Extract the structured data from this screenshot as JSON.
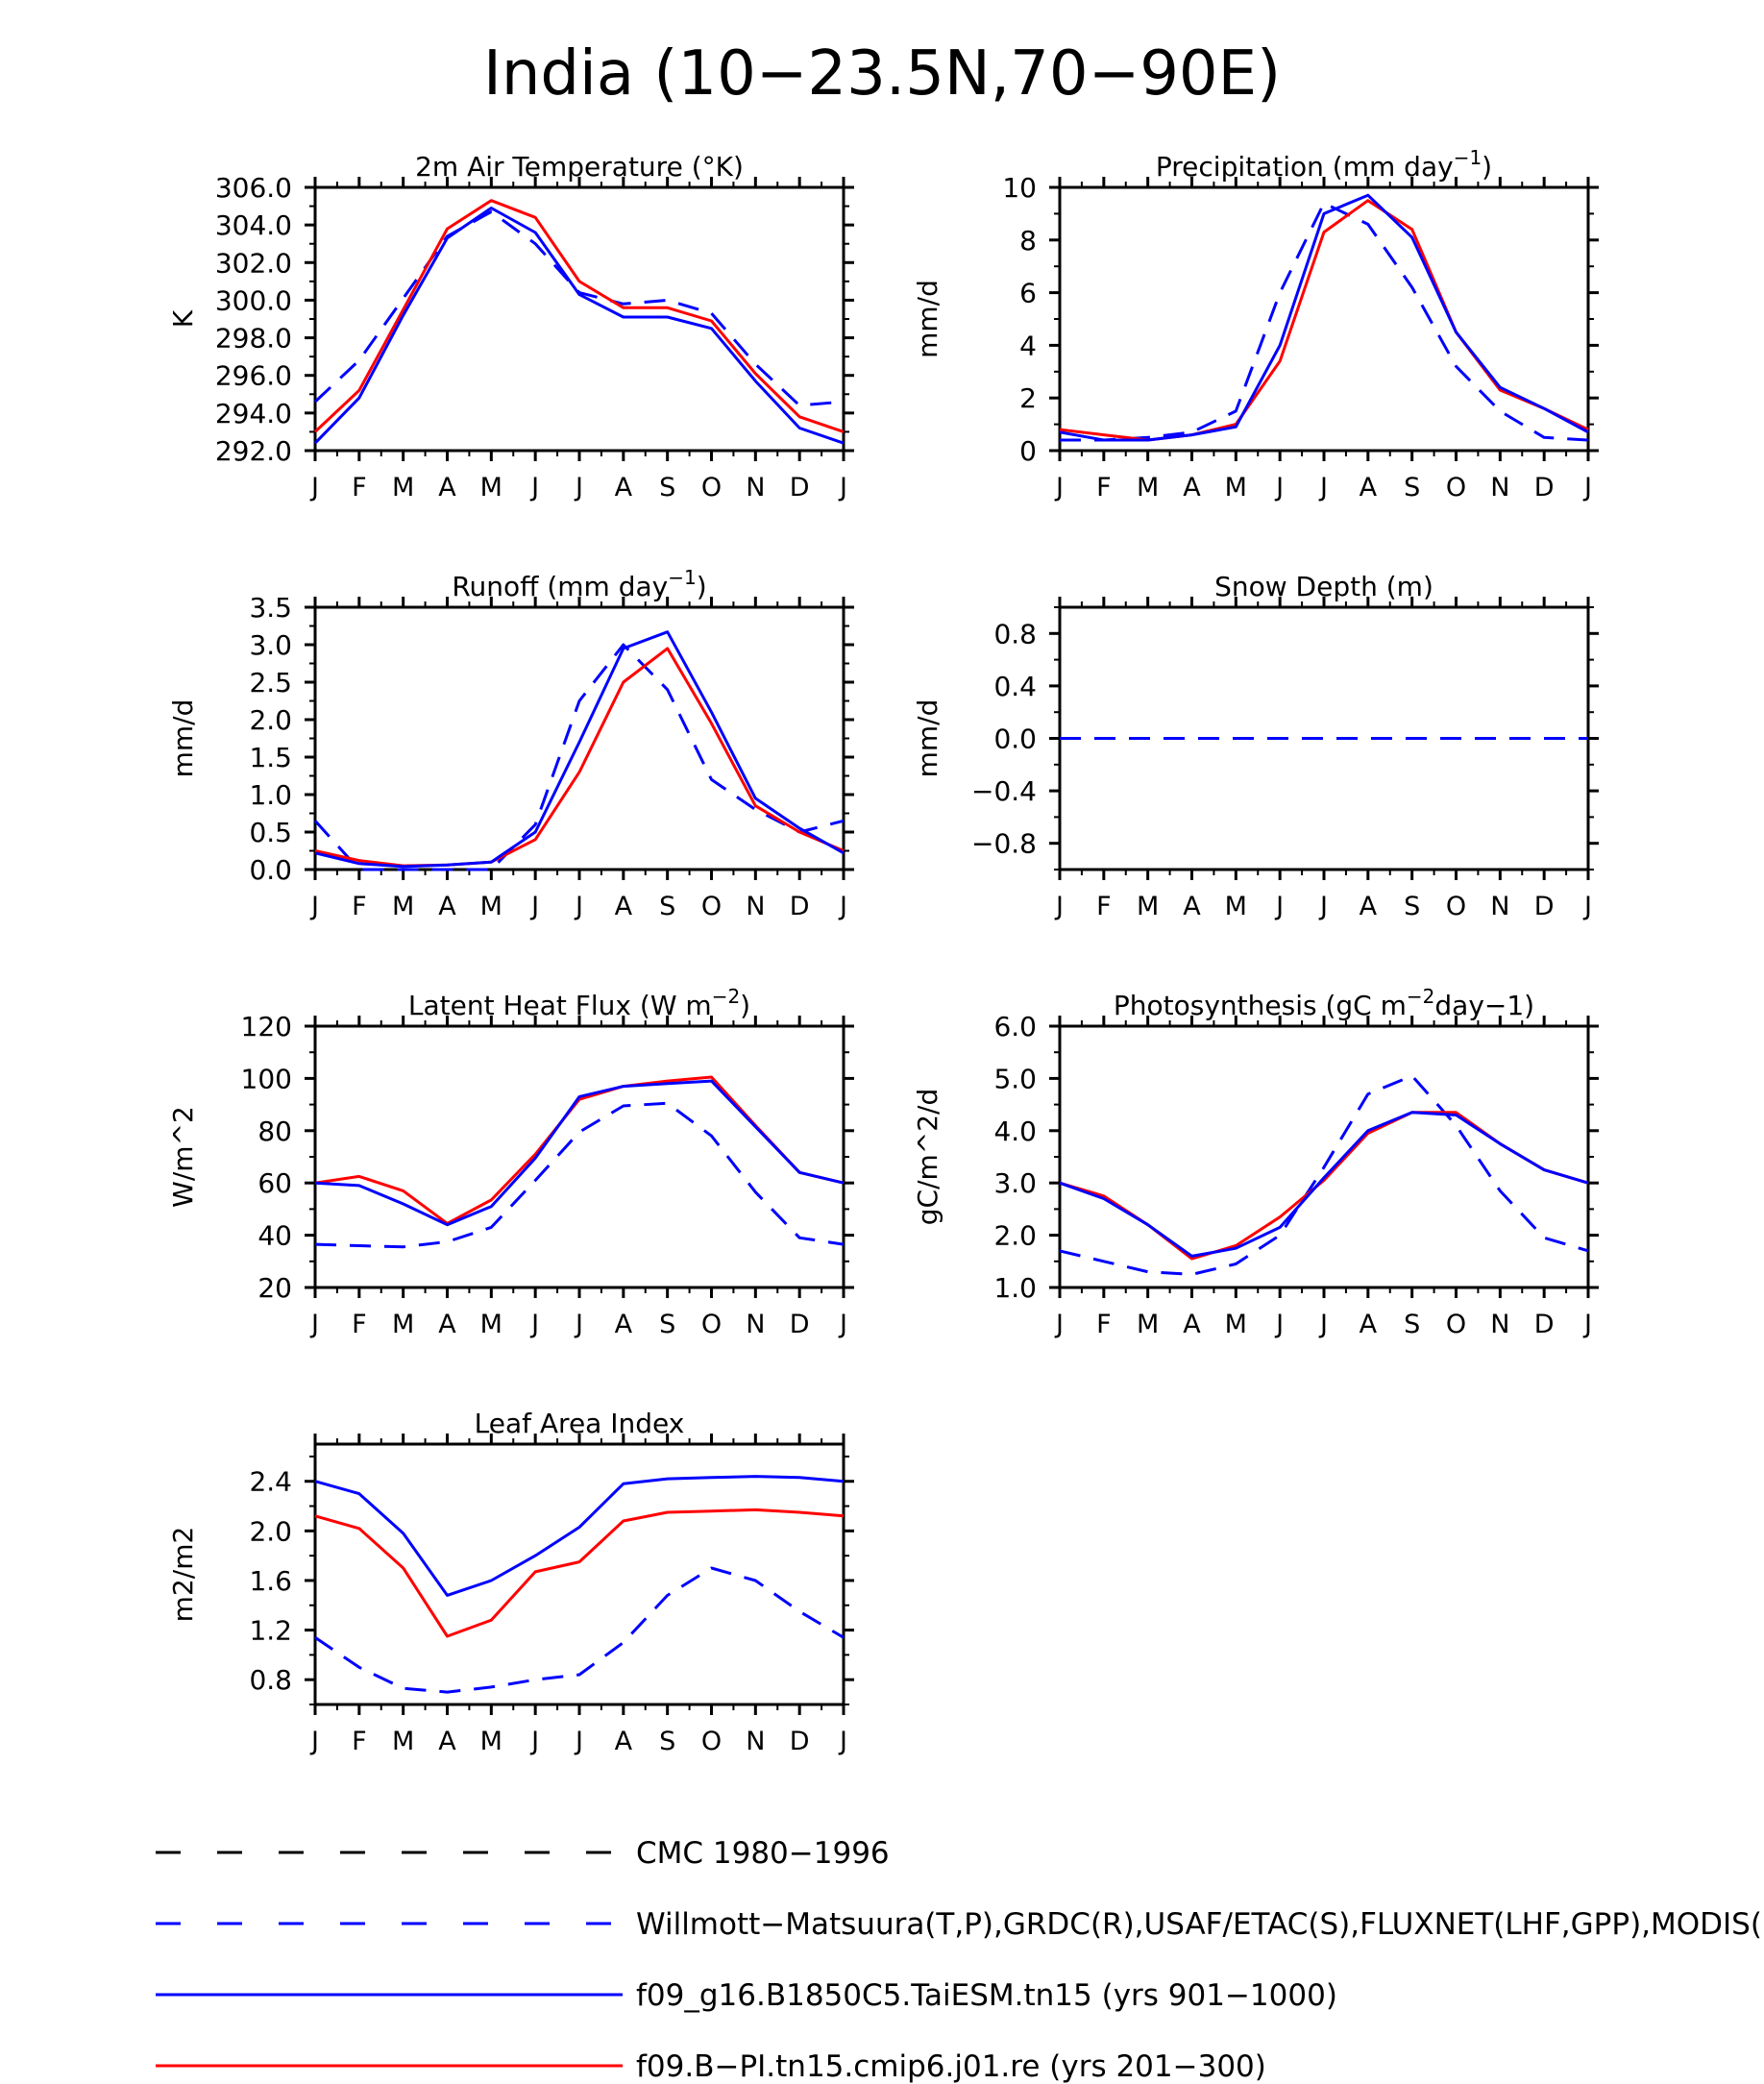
{
  "page_title": "India (10−23.5N,70−90E)",
  "months": [
    "J",
    "F",
    "M",
    "A",
    "M",
    "J",
    "J",
    "A",
    "S",
    "O",
    "N",
    "D",
    "J"
  ],
  "colors": {
    "black": "#000000",
    "blue": "#0000ff",
    "red": "#ff0000"
  },
  "legend": [
    {
      "label": "CMC 1980−1996",
      "color": "#000000",
      "style": "dashed"
    },
    {
      "label": "Willmott−Matsuura(T,P),GRDC(R),USAF/ETAC(S),FLUXNET(LHF,GPP),MODIS(L",
      "color": "#0000ff",
      "style": "dashed"
    },
    {
      "label": "f09_g16.B1850C5.TaiESM.tn15 (yrs 901−1000)",
      "color": "#0000ff",
      "style": "solid"
    },
    {
      "label": "f09.B−PI.tn15.cmip6.j01.re (yrs 201−300)",
      "color": "#ff0000",
      "style": "solid"
    }
  ],
  "chart_data": [
    {
      "type": "line",
      "title": "2m Air Temperature (°K)",
      "ylabel": "K",
      "ylim": [
        292,
        306
      ],
      "yticks": [
        292,
        294,
        296,
        298,
        300,
        302,
        304,
        306
      ],
      "ytick_labels": [
        "292.0",
        "294.0",
        "296.0",
        "298.0",
        "300.0",
        "302.0",
        "304.0",
        "306.0"
      ],
      "series": [
        {
          "color": "#0000ff",
          "style": "dashed",
          "values": [
            294.6,
            296.8,
            300.1,
            303.4,
            304.7,
            303.0,
            300.4,
            299.8,
            300.0,
            299.3,
            296.6,
            294.4,
            294.6
          ]
        },
        {
          "color": "#ff0000",
          "style": "solid",
          "values": [
            293.0,
            295.2,
            299.5,
            303.8,
            305.3,
            304.4,
            301.0,
            299.6,
            299.6,
            298.9,
            296.1,
            293.8,
            293.0
          ]
        },
        {
          "color": "#0000ff",
          "style": "solid",
          "values": [
            292.4,
            294.8,
            299.2,
            303.3,
            304.9,
            303.6,
            300.3,
            299.1,
            299.1,
            298.5,
            295.7,
            293.2,
            292.4
          ]
        }
      ]
    },
    {
      "type": "line",
      "title": "Precipitation (mm day−1)",
      "ylabel": "mm/d",
      "ylim": [
        0,
        10
      ],
      "yticks": [
        0,
        2,
        4,
        6,
        8,
        10
      ],
      "ytick_labels": [
        "0",
        "2",
        "4",
        "6",
        "8",
        "10"
      ],
      "series": [
        {
          "color": "#0000ff",
          "style": "dashed",
          "values": [
            0.4,
            0.4,
            0.5,
            0.7,
            1.5,
            6.0,
            9.4,
            8.6,
            6.2,
            3.2,
            1.5,
            0.5,
            0.4
          ]
        },
        {
          "color": "#ff0000",
          "style": "solid",
          "values": [
            0.8,
            0.6,
            0.4,
            0.6,
            1.0,
            3.4,
            8.3,
            9.5,
            8.4,
            4.5,
            2.3,
            1.6,
            0.8
          ]
        },
        {
          "color": "#0000ff",
          "style": "solid",
          "values": [
            0.7,
            0.4,
            0.4,
            0.6,
            0.9,
            4.0,
            9.0,
            9.7,
            8.1,
            4.5,
            2.4,
            1.6,
            0.7
          ]
        }
      ]
    },
    {
      "type": "line",
      "title": "Runoff (mm day−1)",
      "ylabel": "mm/d",
      "ylim": [
        0,
        3.5
      ],
      "yticks": [
        0,
        0.5,
        1.0,
        1.5,
        2.0,
        2.5,
        3.0,
        3.5
      ],
      "ytick_labels": [
        "0.0",
        "0.5",
        "1.0",
        "1.5",
        "2.0",
        "2.5",
        "3.0",
        "3.5"
      ],
      "series": [
        {
          "color": "#0000ff",
          "style": "dashed",
          "values": [
            0.65,
            0.0,
            0.0,
            0.0,
            0.0,
            0.6,
            2.25,
            3.0,
            2.4,
            1.2,
            0.8,
            0.5,
            0.65
          ]
        },
        {
          "color": "#ff0000",
          "style": "solid",
          "values": [
            0.25,
            0.12,
            0.05,
            0.06,
            0.1,
            0.4,
            1.3,
            2.5,
            2.95,
            1.95,
            0.85,
            0.5,
            0.25
          ]
        },
        {
          "color": "#0000ff",
          "style": "solid",
          "values": [
            0.22,
            0.08,
            0.04,
            0.06,
            0.1,
            0.5,
            1.7,
            2.95,
            3.17,
            2.1,
            0.95,
            0.55,
            0.22
          ]
        }
      ]
    },
    {
      "type": "line",
      "title": "Snow Depth (m)",
      "ylabel": "mm/d",
      "ylim": [
        -1,
        1
      ],
      "yticks": [
        -0.8,
        -0.4,
        0.0,
        0.4,
        0.8
      ],
      "ytick_labels": [
        "−0.8",
        "−0.4",
        "0.0",
        "0.4",
        "0.8"
      ],
      "series": [
        {
          "color": "#000000",
          "style": "dashed",
          "values": [
            0,
            0,
            0,
            0,
            0,
            0,
            0,
            0,
            0,
            0,
            0,
            0,
            0
          ]
        },
        {
          "color": "#0000ff",
          "style": "dashed",
          "values": [
            0,
            0,
            0,
            0,
            0,
            0,
            0,
            0,
            0,
            0,
            0,
            0,
            0
          ]
        }
      ]
    },
    {
      "type": "line",
      "title": "Latent Heat Flux (W m−2)",
      "ylabel": "W/m^2",
      "ylim": [
        20,
        120
      ],
      "yticks": [
        20,
        40,
        60,
        80,
        100,
        120
      ],
      "ytick_labels": [
        "20",
        "40",
        "60",
        "80",
        "100",
        "120"
      ],
      "series": [
        {
          "color": "#0000ff",
          "style": "dashed",
          "values": [
            36.5,
            36,
            35.5,
            37.5,
            43,
            61,
            79.5,
            89.5,
            90.5,
            78,
            56.5,
            39,
            36.5
          ]
        },
        {
          "color": "#ff0000",
          "style": "solid",
          "values": [
            60,
            62.5,
            57,
            44.5,
            53.5,
            71,
            92,
            97,
            99,
            100.5,
            82,
            64,
            60
          ]
        },
        {
          "color": "#0000ff",
          "style": "solid",
          "values": [
            60,
            59,
            52,
            44,
            51,
            69.5,
            93,
            97,
            98,
            99,
            81.5,
            64,
            60
          ]
        }
      ]
    },
    {
      "type": "line",
      "title": "Photosynthesis (gC m−2day−1)",
      "ylabel": "gC/m^2/d",
      "ylim": [
        1,
        6
      ],
      "yticks": [
        1,
        2,
        3,
        4,
        5,
        6
      ],
      "ytick_labels": [
        "1.0",
        "2.0",
        "3.0",
        "4.0",
        "5.0",
        "6.0"
      ],
      "series": [
        {
          "color": "#0000ff",
          "style": "dashed",
          "values": [
            1.7,
            1.5,
            1.3,
            1.25,
            1.45,
            2.0,
            3.3,
            4.7,
            5.05,
            4.1,
            2.85,
            1.95,
            1.7
          ]
        },
        {
          "color": "#ff0000",
          "style": "solid",
          "values": [
            3.0,
            2.75,
            2.2,
            1.55,
            1.8,
            2.35,
            3.05,
            3.95,
            4.35,
            4.35,
            3.75,
            3.25,
            3.0
          ]
        },
        {
          "color": "#0000ff",
          "style": "solid",
          "values": [
            3.0,
            2.7,
            2.2,
            1.6,
            1.75,
            2.15,
            3.1,
            4.0,
            4.35,
            4.3,
            3.75,
            3.25,
            3.0
          ]
        }
      ]
    },
    {
      "type": "line",
      "title": "Leaf Area Index",
      "ylabel": "m2/m2",
      "ylim": [
        0.6,
        2.7
      ],
      "yticks": [
        0.8,
        1.2,
        1.6,
        2.0,
        2.4
      ],
      "ytick_labels": [
        "0.8",
        "1.2",
        "1.6",
        "2.0",
        "2.4"
      ],
      "series": [
        {
          "color": "#0000ff",
          "style": "dashed",
          "values": [
            1.14,
            0.9,
            0.73,
            0.7,
            0.74,
            0.8,
            0.84,
            1.1,
            1.48,
            1.7,
            1.6,
            1.35,
            1.14
          ]
        },
        {
          "color": "#ff0000",
          "style": "solid",
          "values": [
            2.12,
            2.02,
            1.7,
            1.15,
            1.28,
            1.67,
            1.75,
            2.08,
            2.15,
            2.16,
            2.17,
            2.15,
            2.12
          ]
        },
        {
          "color": "#0000ff",
          "style": "solid",
          "values": [
            2.4,
            2.3,
            1.98,
            1.48,
            1.6,
            1.8,
            2.03,
            2.38,
            2.42,
            2.43,
            2.44,
            2.43,
            2.4
          ]
        }
      ]
    }
  ]
}
